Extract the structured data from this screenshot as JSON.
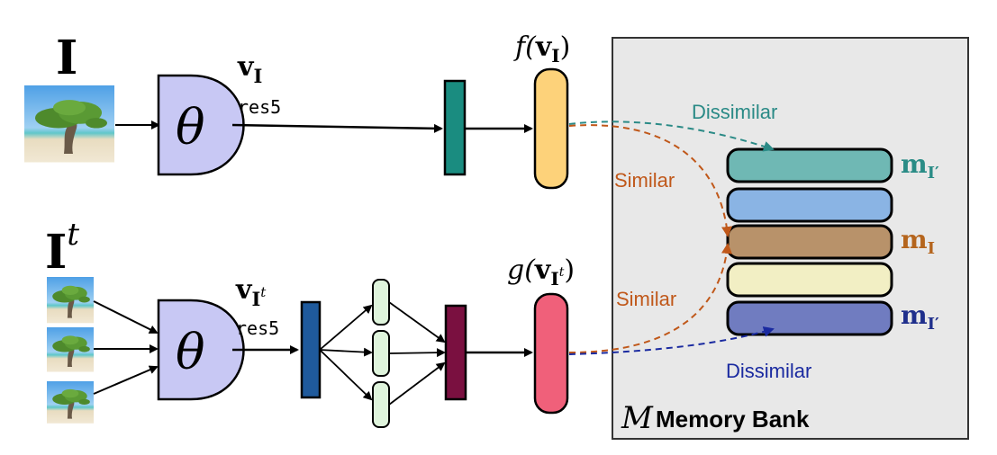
{
  "top_branch": {
    "input_label": "I",
    "encoder_symbol": "θ",
    "feature_symbol": "v",
    "feature_subscript": "I",
    "layer_label": "res5",
    "head_fn": "f(",
    "head_arg": "v",
    "head_sub": "I",
    "head_close": ")",
    "head_color": "#fdd27a"
  },
  "bottom_branch": {
    "input_label": "I",
    "input_superscript": "t",
    "encoder_symbol": "θ",
    "feature_symbol": "v",
    "feature_subscript": "I",
    "feature_sub_superscript": "t",
    "layer_label": "res5",
    "head_fn": "g(",
    "head_arg": "v",
    "head_sub": "I",
    "head_sub_sup": "t",
    "head_close": ")",
    "head_color": "#f0607a"
  },
  "memory_bank": {
    "symbol": "M",
    "title": "Memory Bank",
    "entries": [
      {
        "color": "#6fb8b4",
        "label": "m",
        "sub": "I′",
        "label_color": "#2a8c86"
      },
      {
        "color": "#8ab4e4",
        "label": "",
        "sub": "",
        "label_color": ""
      },
      {
        "color": "#b8926a",
        "label": "m",
        "sub": "I",
        "label_color": "#b5651d"
      },
      {
        "color": "#f2efc4",
        "label": "",
        "sub": "",
        "label_color": ""
      },
      {
        "color": "#707cc0",
        "label": "m",
        "sub": "I′",
        "label_color": "#1f2f8c"
      }
    ]
  },
  "relations": {
    "top_dissimilar": "Dissimilar",
    "top_similar": "Similar",
    "bottom_similar": "Similar",
    "bottom_dissimilar": "Dissimilar",
    "dissimilar_top_color": "#2a8a86",
    "similar_color": "#c0581a",
    "dissimilar_bottom_color": "#1a2aa0"
  }
}
